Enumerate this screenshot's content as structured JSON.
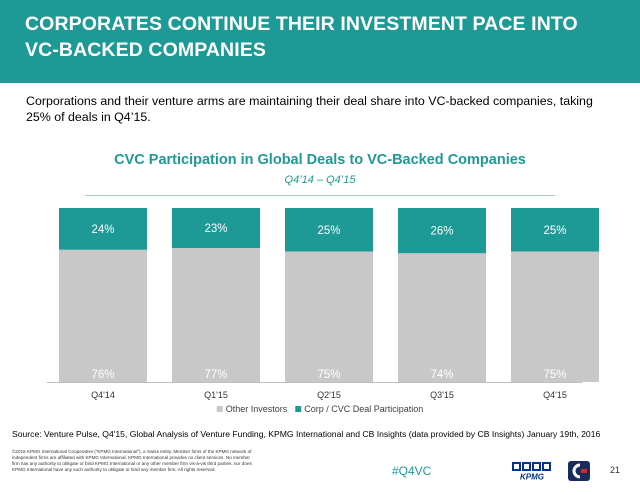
{
  "header": {
    "title": "CORPORATES CONTINUE THEIR INVESTMENT PACE INTO VC-BACKED COMPANIES"
  },
  "intro": "Corporations and their venture arms are maintaining their deal share into VC-backed companies, taking 25% of deals in Q4’15.",
  "chart_data": {
    "type": "bar",
    "stacked": true,
    "normalized_percent": true,
    "title": "CVC Participation in Global Deals to VC-Backed Companies",
    "subtitle": "Q4’14 – Q4’15",
    "categories": [
      "Q4'14",
      "Q1'15",
      "Q2'15",
      "Q3'15",
      "Q4'15"
    ],
    "series": [
      {
        "name": "Other Investors",
        "values": [
          76,
          77,
          75,
          74,
          75
        ],
        "color": "#c8c8c8"
      },
      {
        "name": "Corp / CVC Deal Participation",
        "values": [
          24,
          23,
          25,
          26,
          25
        ],
        "color": "#1d9a96"
      }
    ],
    "ylim": [
      0,
      100
    ],
    "grid": false,
    "legend": "bottom"
  },
  "source": "Source: Venture Pulse, Q4'15, Global Analysis of Venture Funding, KPMG International and CB Insights (data provided by CB Insights) January 19th, 2016",
  "footer": {
    "legal": "©2016 KPMG International Cooperative (“KPMG International”), a Swiss entity. Member firms of the KPMG network of independent firms are affiliated with KPMG International. KPMG International provides no client services. No member firm has any authority to obligate or bind KPMG International or any other member firm vis-à-vis third parties, nor does KPMG International have any such authority to obligate or bind any member firm. All rights reserved.",
    "hashtag": "#Q4VC",
    "logo_text": "KPMG",
    "page_number": "21"
  },
  "colors": {
    "brand_teal": "#1d9a96",
    "other_gray": "#c8c8c8"
  }
}
